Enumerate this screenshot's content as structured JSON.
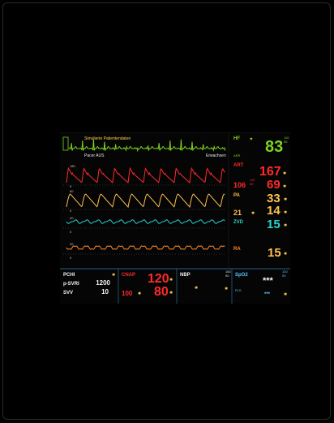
{
  "header": {
    "banner": "Simulierte Patientendaten"
  },
  "messages": {
    "pacer": "Pacer AUS",
    "patient": "Erwachsen"
  },
  "waves": {
    "art": {
      "scale_top": "180",
      "scale_bottom": "0"
    },
    "pa": {
      "scale_top": "50",
      "scale_bottom": "0"
    },
    "zvd": {
      "scale_top": "20",
      "scale_bottom": "0"
    },
    "ra": {
      "scale_top": "20",
      "scale_bottom": "0"
    }
  },
  "params": {
    "hf": {
      "label": "HF",
      "value": "83",
      "sub": "ARR",
      "limit_high": "110",
      "limit_low": "65",
      "color": "#7ed321"
    },
    "art": {
      "label": "ART",
      "systolic": "167",
      "diastolic": "106",
      "mean": "69",
      "limit_high": "115",
      "limit_low": "60",
      "color": "#ff2a2a"
    },
    "pa": {
      "label": "PA",
      "systolic": "33",
      "diastolic": "21",
      "mean": "14",
      "color": "#ffc04d"
    },
    "zvd": {
      "label": "ZVD",
      "value": "15",
      "color": "#25d6c8"
    },
    "ra": {
      "label": "RA",
      "value": "15",
      "color": "#ff8a2a"
    }
  },
  "bottom": {
    "pchi": {
      "label": "PCHI",
      "rows": [
        {
          "label": "p-SVRI",
          "value": "1200"
        },
        {
          "label": "SVV",
          "value": "10"
        }
      ]
    },
    "cnap": {
      "label": "CNAP",
      "systolic": "120",
      "mean": "100",
      "diastolic": "80",
      "color": "#ff2a2a"
    },
    "nbp": {
      "label": "NBP",
      "limit_high": "160",
      "limit_low": "90"
    },
    "spo2": {
      "label": "SpO2",
      "sub": "PLS",
      "value": "***",
      "pulse": "***",
      "limit_high": "100",
      "limit_low": "90",
      "color": "#5bc8ff"
    }
  },
  "colors": {
    "ecg": "#7ed321",
    "art": "#ff2a2a",
    "pa": "#ffc04d",
    "zvd": "#25d6c8",
    "ra": "#ff8a2a",
    "yellow": "#ffd24d"
  }
}
